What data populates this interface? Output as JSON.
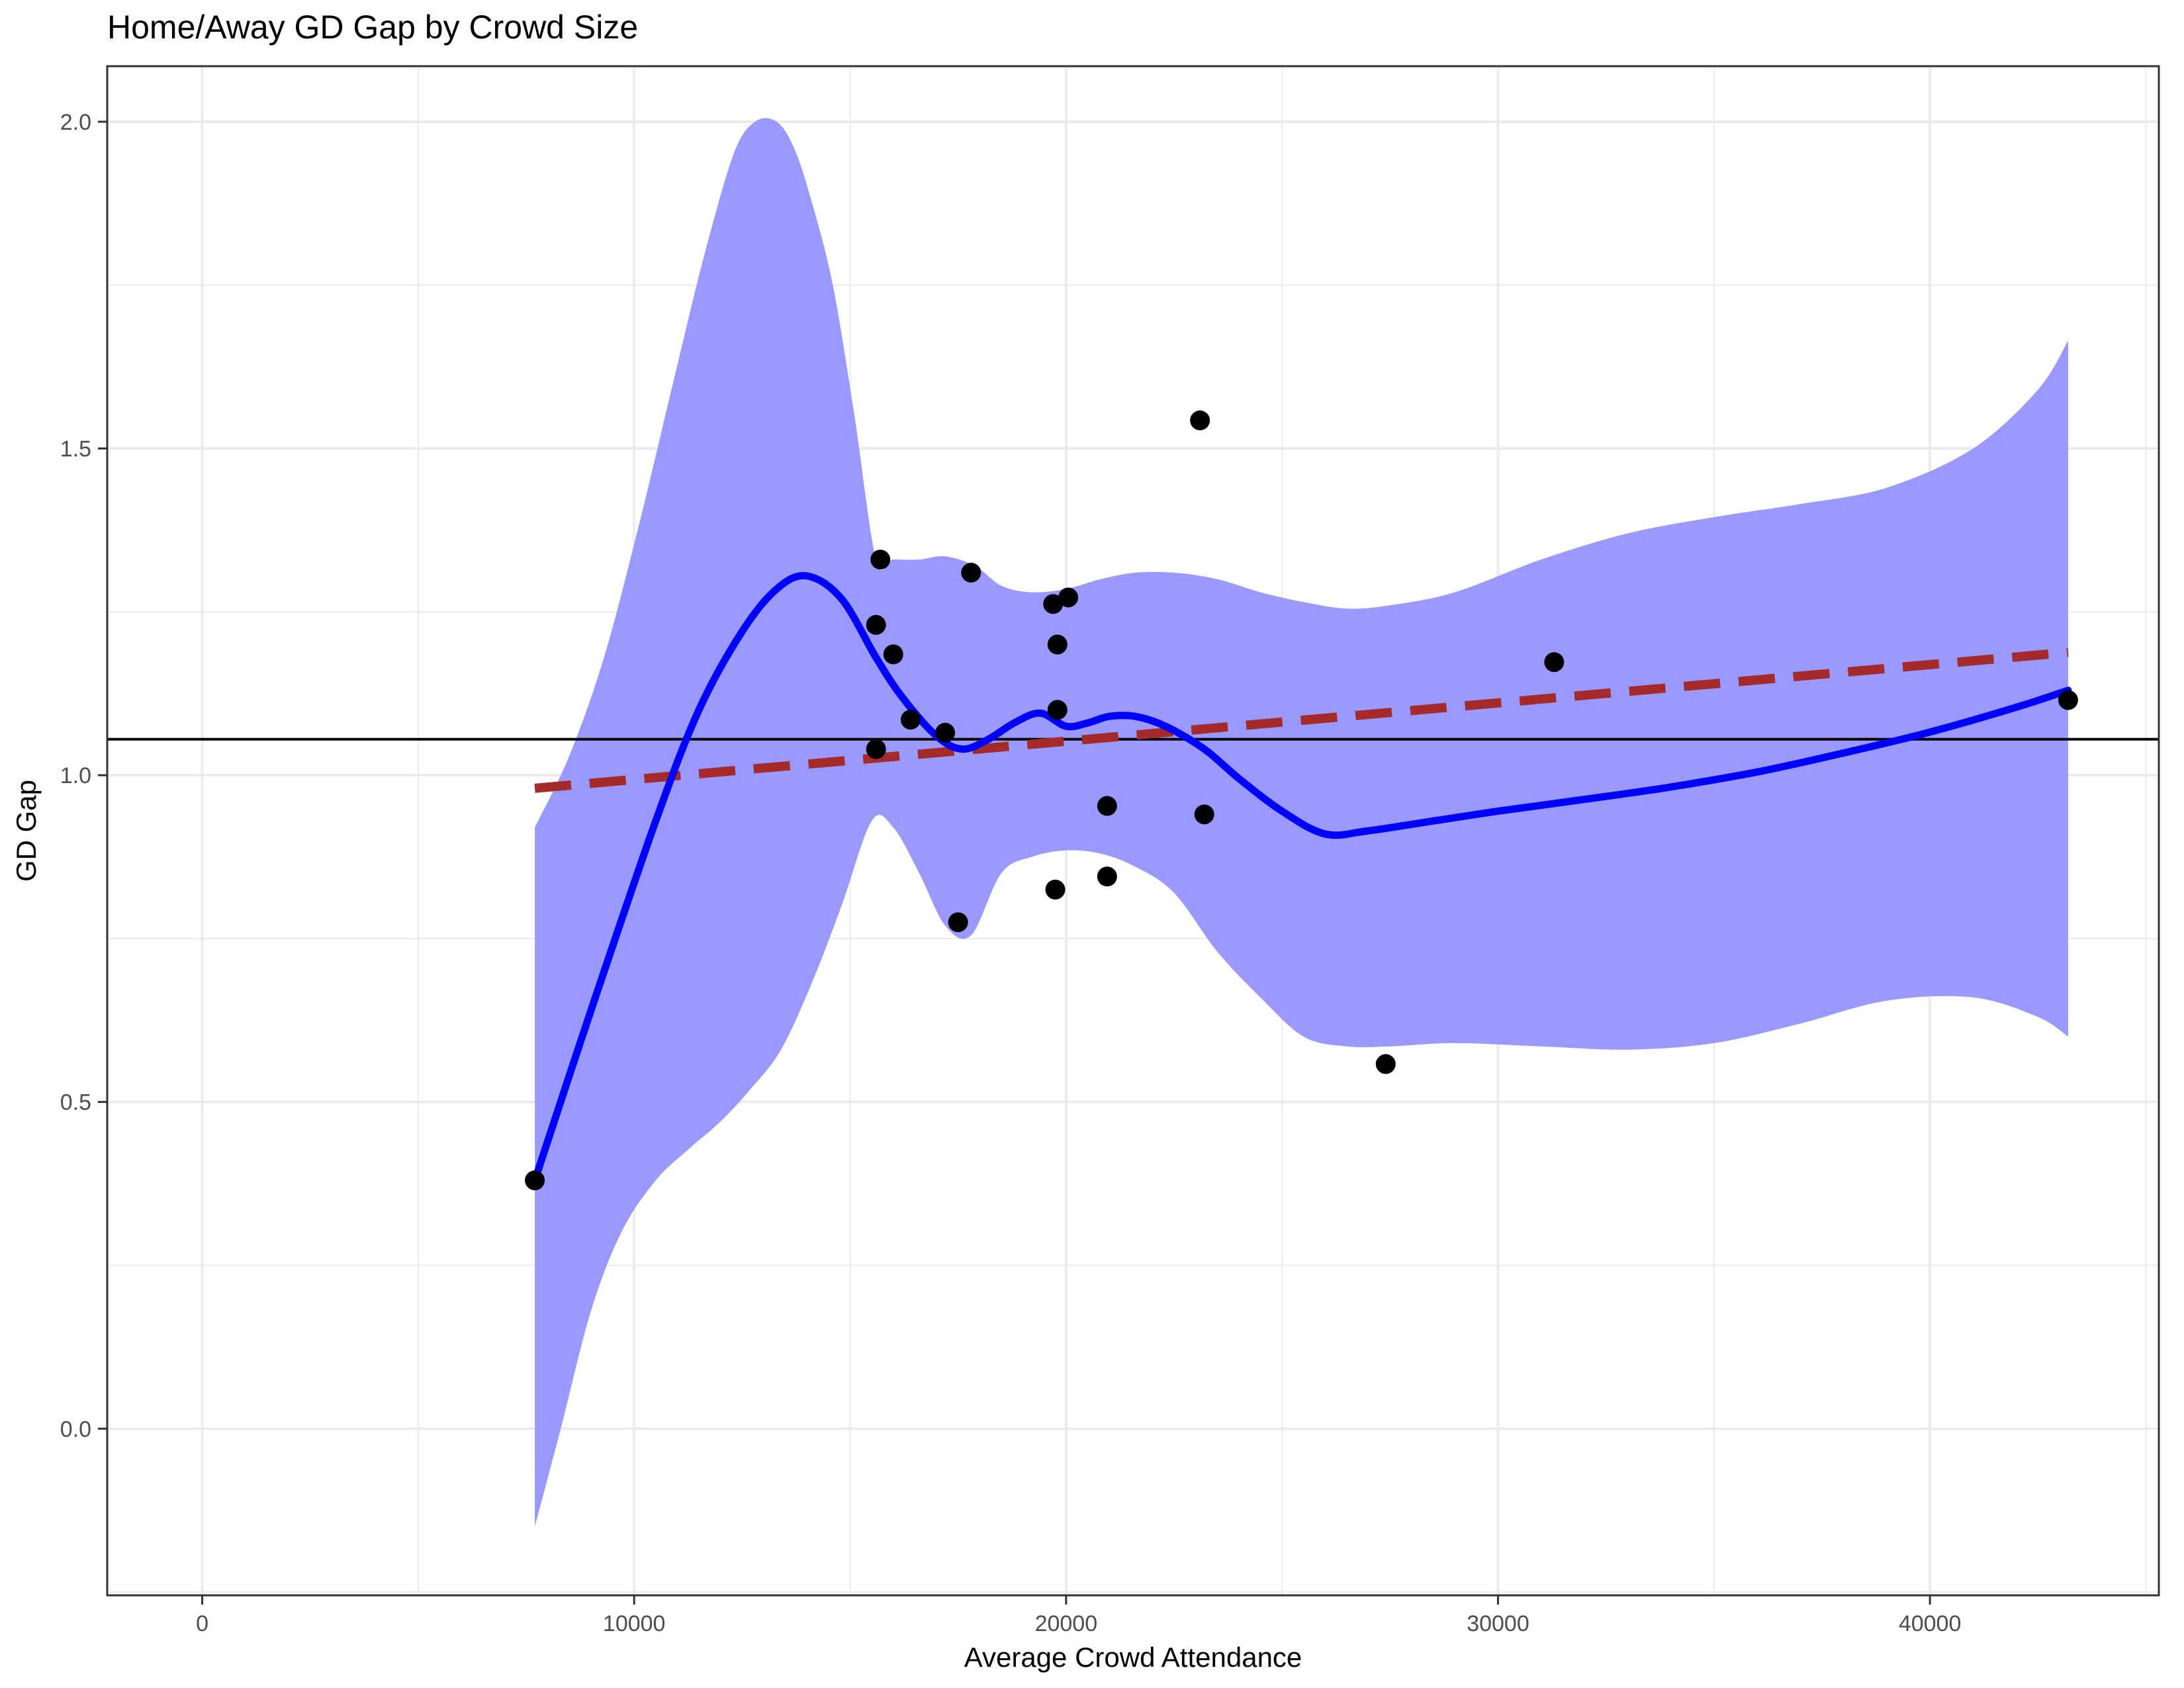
{
  "chart_data": {
    "type": "scatter",
    "title": "Home/Away GD Gap by Crowd Size",
    "xlabel": "Average Crowd Attendance",
    "ylabel": "GD Gap",
    "xlim": [
      -2200,
      45300
    ],
    "ylim": [
      -0.255,
      2.085
    ],
    "x_ticks": [
      0,
      10000,
      20000,
      30000,
      40000
    ],
    "y_ticks": [
      0.0,
      0.5,
      1.0,
      1.5,
      2.0
    ],
    "x_tick_labels": [
      "0",
      "10000",
      "20000",
      "30000",
      "40000"
    ],
    "y_tick_labels": [
      "0.0",
      "0.5",
      "1.0",
      "1.5",
      "2.0"
    ],
    "grid": true,
    "colors": {
      "points": "#000000",
      "loess_line": "#0000ff",
      "ribbon": "#9999ff",
      "linear_fit": "#a52a2a",
      "mean_line": "#000000"
    },
    "points": [
      {
        "x": 7700,
        "y": 0.38
      },
      {
        "x": 15600,
        "y": 1.23
      },
      {
        "x": 15700,
        "y": 1.33
      },
      {
        "x": 16000,
        "y": 1.185
      },
      {
        "x": 15600,
        "y": 1.04
      },
      {
        "x": 16400,
        "y": 1.085
      },
      {
        "x": 17200,
        "y": 1.065
      },
      {
        "x": 17500,
        "y": 0.775
      },
      {
        "x": 17800,
        "y": 1.31
      },
      {
        "x": 19700,
        "y": 1.262
      },
      {
        "x": 20050,
        "y": 1.272
      },
      {
        "x": 19800,
        "y": 1.2
      },
      {
        "x": 19800,
        "y": 1.1
      },
      {
        "x": 19750,
        "y": 0.825
      },
      {
        "x": 20950,
        "y": 0.953
      },
      {
        "x": 20950,
        "y": 0.845
      },
      {
        "x": 23100,
        "y": 1.543
      },
      {
        "x": 23200,
        "y": 0.94
      },
      {
        "x": 27400,
        "y": 0.558
      },
      {
        "x": 31300,
        "y": 1.173
      },
      {
        "x": 43200,
        "y": 1.115
      }
    ],
    "loess": {
      "x": [
        7700,
        9000,
        10500,
        11500,
        12500,
        13300,
        14000,
        14800,
        15600,
        16200,
        17000,
        17600,
        18200,
        18800,
        19400,
        20000,
        20500,
        21000,
        21600,
        22300,
        23200,
        24000,
        25000,
        26000,
        27000,
        28500,
        30000,
        32000,
        34000,
        36000,
        38000,
        40000,
        42000,
        43200
      ],
      "y": [
        0.38,
        0.64,
        0.93,
        1.1,
        1.22,
        1.285,
        1.305,
        1.27,
        1.18,
        1.12,
        1.06,
        1.04,
        1.055,
        1.08,
        1.095,
        1.075,
        1.08,
        1.09,
        1.09,
        1.075,
        1.04,
        0.995,
        0.945,
        0.91,
        0.915,
        0.93,
        0.945,
        0.963,
        0.982,
        1.005,
        1.034,
        1.066,
        1.104,
        1.13
      ]
    },
    "ribbon_upper": {
      "x": [
        7700,
        8500,
        9300,
        10100,
        10900,
        11600,
        12300,
        12800,
        13300,
        13700,
        14100,
        14600,
        15100,
        15600,
        16000,
        16600,
        17200,
        17900,
        18500,
        19200,
        20000,
        20800,
        21600,
        22500,
        23500,
        24500,
        25500,
        26500,
        27500,
        29000,
        31000,
        33000,
        35000,
        37000,
        39000,
        41000,
        42500,
        43200
      ],
      "y": [
        0.92,
        1.03,
        1.18,
        1.38,
        1.6,
        1.79,
        1.95,
        2.0,
        2.0,
        1.96,
        1.88,
        1.75,
        1.55,
        1.33,
        1.33,
        1.33,
        1.335,
        1.32,
        1.29,
        1.28,
        1.285,
        1.3,
        1.31,
        1.31,
        1.3,
        1.28,
        1.265,
        1.255,
        1.26,
        1.28,
        1.33,
        1.37,
        1.395,
        1.415,
        1.44,
        1.5,
        1.59,
        1.665
      ]
    },
    "ribbon_lower": {
      "x": [
        7700,
        8300,
        9000,
        9700,
        10500,
        11300,
        12000,
        12700,
        13400,
        14100,
        14800,
        15500,
        16000,
        16600,
        17200,
        17800,
        18500,
        19200,
        20000,
        20800,
        21600,
        22500,
        23500,
        24500,
        25500,
        26500,
        27500,
        29000,
        31000,
        33000,
        35000,
        37000,
        39000,
        41000,
        42500,
        43200
      ],
      "y": [
        -0.15,
        0.0,
        0.18,
        0.3,
        0.38,
        0.43,
        0.47,
        0.52,
        0.58,
        0.68,
        0.8,
        0.93,
        0.92,
        0.85,
        0.77,
        0.755,
        0.85,
        0.875,
        0.885,
        0.88,
        0.86,
        0.82,
        0.73,
        0.66,
        0.6,
        0.585,
        0.585,
        0.59,
        0.585,
        0.58,
        0.59,
        0.62,
        0.655,
        0.66,
        0.63,
        0.6
      ]
    },
    "linear_fit": {
      "x": [
        7700,
        43200
      ],
      "y": [
        0.98,
        1.188
      ]
    },
    "mean_line": {
      "y": 1.055
    }
  }
}
